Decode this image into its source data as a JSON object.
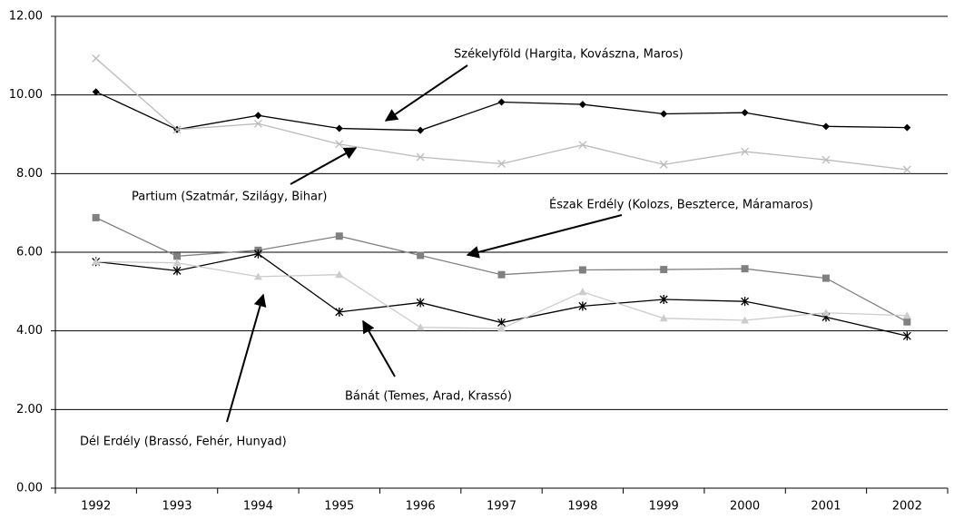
{
  "chart_data": {
    "type": "line",
    "categories": [
      "1992",
      "1993",
      "1994",
      "1995",
      "1996",
      "1997",
      "1998",
      "1999",
      "2000",
      "2001",
      "2002"
    ],
    "series": [
      {
        "name": "Székelyföld (Hargita, Kovászna, Maros)",
        "color": "#000000",
        "marker": "diamond",
        "values": [
          10.08,
          9.12,
          9.48,
          9.15,
          9.1,
          9.82,
          9.76,
          9.52,
          9.55,
          9.2,
          9.17
        ]
      },
      {
        "name": "Partium (Szatmár, Szilágy, Bihar)",
        "color": "#bbbbbb",
        "marker": "x",
        "values": [
          10.93,
          9.12,
          9.27,
          8.75,
          8.42,
          8.25,
          8.73,
          8.23,
          8.56,
          8.35,
          8.1
        ]
      },
      {
        "name": "Észak Erdély (Kolozs, Beszterce, Máramaros)",
        "color": "#808080",
        "marker": "square",
        "values": [
          6.88,
          5.9,
          6.05,
          6.41,
          5.92,
          5.43,
          5.55,
          5.56,
          5.58,
          5.34,
          4.23
        ]
      },
      {
        "name": "Bánát (Temes, Arad, Krassó)",
        "color": "#000000",
        "marker": "asterisk",
        "values": [
          5.76,
          5.53,
          5.96,
          4.48,
          4.72,
          4.21,
          4.63,
          4.8,
          4.75,
          4.35,
          3.87
        ]
      },
      {
        "name": "Dél Erdély (Brassó, Fehér, Hunyad)",
        "color": "#cccccc",
        "marker": "triangle",
        "values": [
          5.76,
          5.73,
          5.38,
          5.43,
          4.09,
          4.06,
          4.99,
          4.32,
          4.27,
          4.46,
          4.39
        ]
      }
    ],
    "ylim": [
      0,
      12
    ],
    "yticks": [
      {
        "value": 0,
        "label": "0.00"
      },
      {
        "value": 2,
        "label": "2.00"
      },
      {
        "value": 4,
        "label": "4.00"
      },
      {
        "value": 6,
        "label": "6.00"
      },
      {
        "value": 8,
        "label": "8.00"
      },
      {
        "value": 10,
        "label": "10.00"
      },
      {
        "value": 12,
        "label": "12.00"
      }
    ],
    "grid": true
  }
}
